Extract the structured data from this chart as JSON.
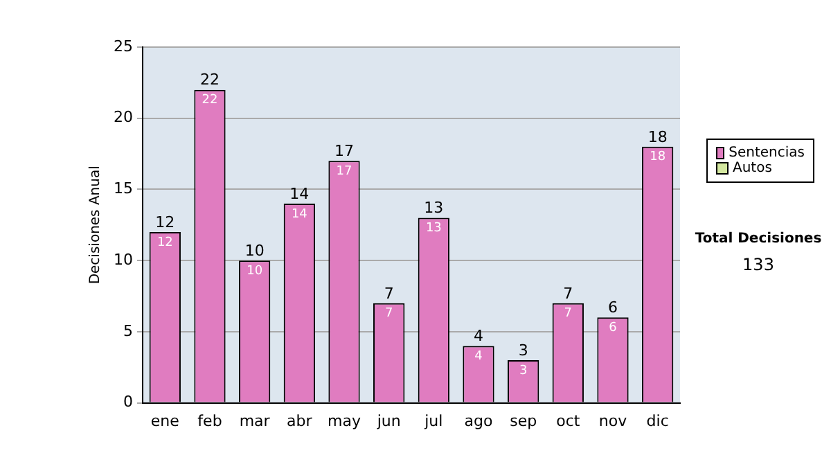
{
  "chart_data": {
    "type": "bar",
    "ylabel": "Decisiones Anual",
    "categories": [
      "ene",
      "feb",
      "mar",
      "abr",
      "may",
      "jun",
      "jul",
      "ago",
      "sep",
      "oct",
      "nov",
      "dic"
    ],
    "series": [
      {
        "name": "Sentencias",
        "color": "#e07cc0",
        "values": [
          12,
          22,
          10,
          14,
          17,
          7,
          13,
          4,
          3,
          7,
          6,
          18
        ]
      },
      {
        "name": "Autos",
        "color": "#d4e8a0",
        "values": [
          null,
          null,
          null,
          null,
          null,
          null,
          null,
          null,
          null,
          null,
          null,
          null
        ]
      }
    ],
    "stacked": true,
    "data_labels": true,
    "totals": [
      "12",
      "22",
      "10",
      "14",
      "17",
      "7",
      "13",
      "4",
      "3",
      "7",
      "6",
      "18"
    ],
    "ylim": [
      0,
      25
    ],
    "yticks": [
      0,
      5,
      10,
      15,
      20,
      25
    ],
    "grid": "y",
    "legend": "right",
    "annotations": [
      "Total Decisiones",
      "133"
    ]
  }
}
